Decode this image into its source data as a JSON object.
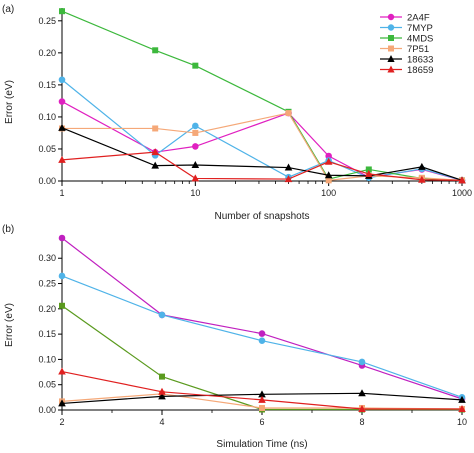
{
  "chart_data": [
    {
      "panel_label": "(a)",
      "type": "line",
      "xscale": "log",
      "xlabel": "Number of snapshots",
      "ylabel": "Error (eV)",
      "xlim": [
        1,
        1000
      ],
      "ylim": [
        0,
        0.27
      ],
      "xticks": [
        1,
        10,
        100,
        1000
      ],
      "xtick_labels": [
        "1",
        "10",
        "100",
        "1000"
      ],
      "yticks": [
        0.0,
        0.05,
        0.1,
        0.15,
        0.2,
        0.25
      ],
      "ytick_labels": [
        "0.00",
        "0.05",
        "0.10",
        "0.15",
        "0.20",
        "0.25"
      ],
      "legend_position": "top-right",
      "x": [
        1,
        5,
        10,
        50,
        100,
        200,
        500,
        1000
      ],
      "series": [
        {
          "name": "2A4F",
          "color": "#e020c0",
          "marker": "circle",
          "values": [
            0.124,
            0.045,
            0.054,
            0.106,
            0.039,
            0.006,
            0.018,
            0.001
          ]
        },
        {
          "name": "7MYP",
          "color": "#4fb3e8",
          "marker": "circle",
          "values": [
            0.158,
            0.04,
            0.086,
            0.006,
            0.032,
            0.005,
            0.019,
            0.001
          ]
        },
        {
          "name": "4MDS",
          "color": "#3cb83c",
          "marker": "square",
          "values": [
            0.265,
            0.204,
            0.18,
            0.108,
            0.003,
            0.018,
            0.004,
            0.001
          ]
        },
        {
          "name": "7P51",
          "color": "#f5a878",
          "marker": "square",
          "values": [
            0.082,
            0.082,
            0.075,
            0.106,
            0.001,
            0.008,
            0.005,
            0.001
          ]
        },
        {
          "name": "18633",
          "color": "#000000",
          "marker": "triangle",
          "values": [
            0.083,
            0.024,
            0.025,
            0.021,
            0.009,
            0.008,
            0.022,
            0.001
          ]
        },
        {
          "name": "18659",
          "color": "#e02020",
          "marker": "triangle",
          "values": [
            0.033,
            0.045,
            0.004,
            0.003,
            0.03,
            0.011,
            0.002,
            0.001
          ]
        }
      ]
    },
    {
      "panel_label": "(b)",
      "type": "line",
      "xscale": "linear",
      "xlabel": "Simulation Time (ns)",
      "ylabel": "Error (eV)",
      "xlim": [
        2,
        10
      ],
      "ylim": [
        0,
        0.34
      ],
      "xticks": [
        2,
        4,
        6,
        8,
        10
      ],
      "xtick_labels": [
        "2",
        "4",
        "6",
        "8",
        "10"
      ],
      "yticks": [
        0.0,
        0.05,
        0.1,
        0.15,
        0.2,
        0.25,
        0.3
      ],
      "ytick_labels": [
        "0.00",
        "0.05",
        "0.10",
        "0.15",
        "0.20",
        "0.25",
        "0.30"
      ],
      "x": [
        2,
        4,
        6,
        8,
        10
      ],
      "series": [
        {
          "color": "#c020c0",
          "marker": "circle",
          "values": [
            0.34,
            0.188,
            0.151,
            0.088,
            0.022
          ]
        },
        {
          "color": "#4fb3e8",
          "marker": "circle",
          "values": [
            0.265,
            0.188,
            0.137,
            0.095,
            0.025
          ]
        },
        {
          "color": "#5a9a1e",
          "marker": "square",
          "values": [
            0.206,
            0.066,
            0.001,
            0.001,
            0.001
          ]
        },
        {
          "color": "#f5a878",
          "marker": "square",
          "values": [
            0.017,
            0.032,
            0.004,
            0.004,
            0.002
          ]
        },
        {
          "color": "#000000",
          "marker": "triangle",
          "values": [
            0.013,
            0.027,
            0.031,
            0.033,
            0.02
          ]
        },
        {
          "color": "#e02020",
          "marker": "triangle",
          "values": [
            0.076,
            0.036,
            0.02,
            0.002,
            0.002
          ]
        }
      ]
    }
  ]
}
